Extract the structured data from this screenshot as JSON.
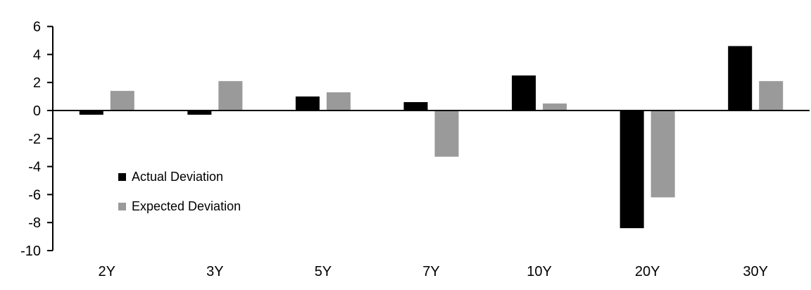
{
  "chart_data": {
    "type": "bar",
    "title": "",
    "xlabel": "",
    "ylabel": "",
    "categories": [
      "2Y",
      "3Y",
      "5Y",
      "7Y",
      "10Y",
      "20Y",
      "30Y"
    ],
    "series": [
      {
        "name": "Actual Deviation",
        "color": "#000000",
        "values": [
          -0.3,
          -0.3,
          1.0,
          0.6,
          2.5,
          -8.4,
          4.6
        ]
      },
      {
        "name": "Expected Deviation",
        "color": "#9a9a9a",
        "values": [
          1.4,
          2.1,
          1.3,
          -3.3,
          0.5,
          -6.2,
          2.1
        ]
      }
    ],
    "ylim": [
      -10,
      6
    ],
    "yticks": [
      6,
      4,
      2,
      0,
      -2,
      -4,
      -6,
      -8,
      -10
    ],
    "grid": false,
    "legend_position": "inside-left",
    "axis_color": "#000000",
    "background_color": "#ffffff"
  }
}
